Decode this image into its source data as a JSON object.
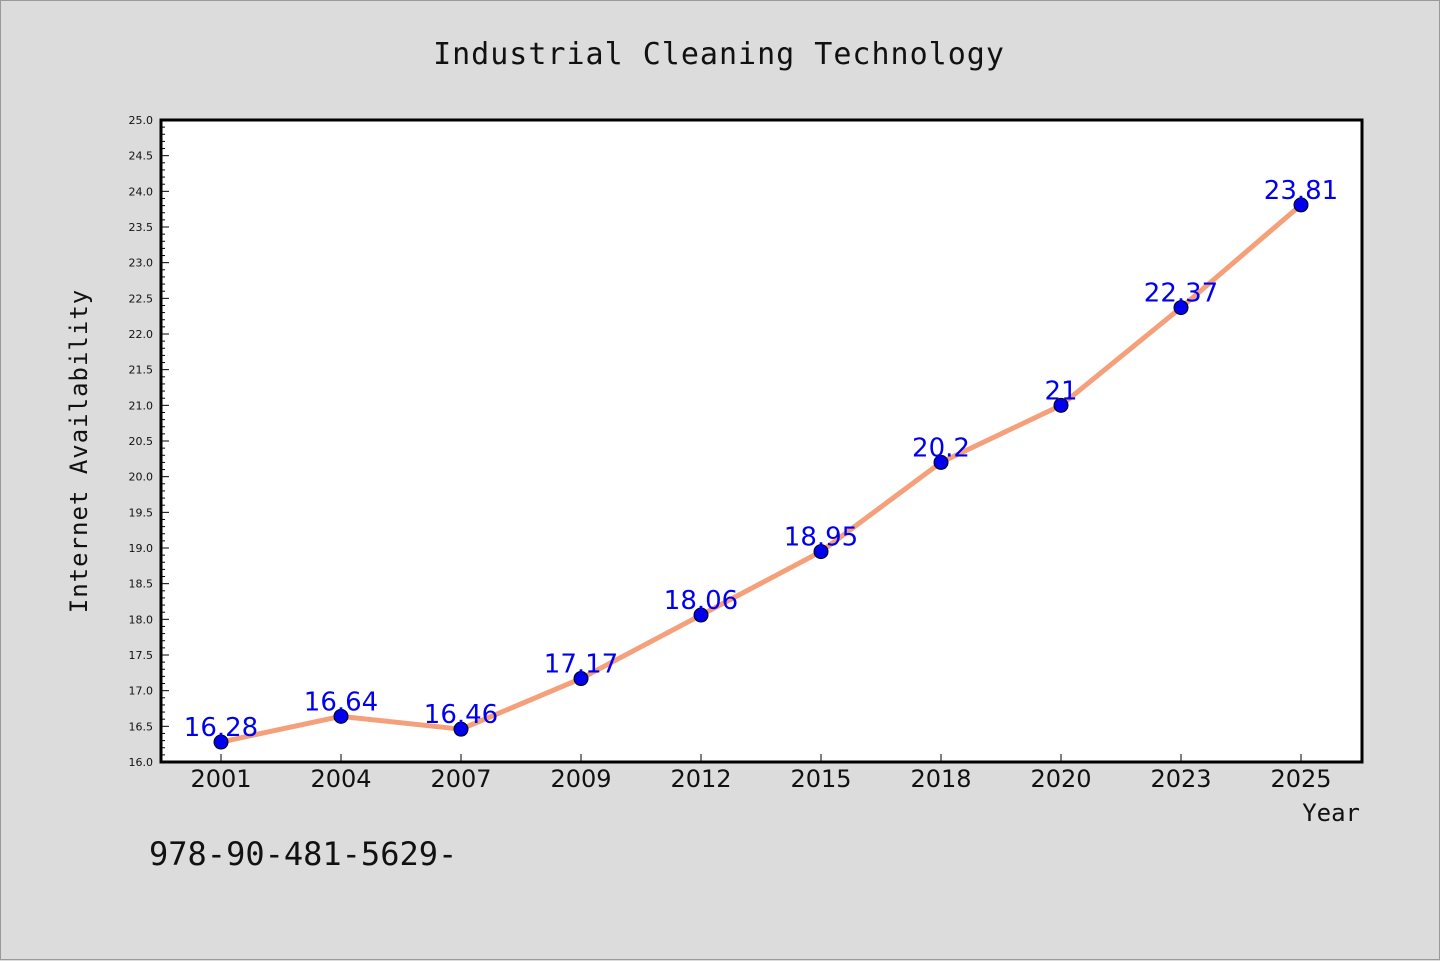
{
  "chart_data": {
    "type": "line",
    "title": "Industrial Cleaning Technology",
    "xlabel": "Year",
    "ylabel": "Internet Availability",
    "categories": [
      "2001",
      "2004",
      "2007",
      "2009",
      "2012",
      "2015",
      "2018",
      "2020",
      "2023",
      "2025"
    ],
    "series": [
      {
        "values": [
          16.28,
          16.64,
          16.46,
          17.17,
          18.06,
          18.95,
          20.2,
          21,
          22.37,
          23.81
        ],
        "labels": [
          "16.28",
          "16.64",
          "16.46",
          "17.17",
          "18.06",
          "18.95",
          "20.2",
          "21",
          "22.37",
          "23.81"
        ]
      }
    ],
    "ylim": [
      16.0,
      25.0
    ],
    "yticks": [
      "16.0",
      "16.5",
      "17.0",
      "17.5",
      "18.0",
      "18.5",
      "19.0",
      "19.5",
      "20.0",
      "20.5",
      "21.0",
      "21.5",
      "22.0",
      "22.5",
      "23.0",
      "23.5",
      "24.0",
      "24.5",
      "25.0"
    ],
    "grid": false,
    "legend": "none",
    "colors": {
      "line": "#f4a07a",
      "marker": "#0000ee",
      "label": "#0000ee",
      "background": "#dcdcdc",
      "plot_background": "#ffffff"
    }
  },
  "footnote": "978-90-481-5629-"
}
